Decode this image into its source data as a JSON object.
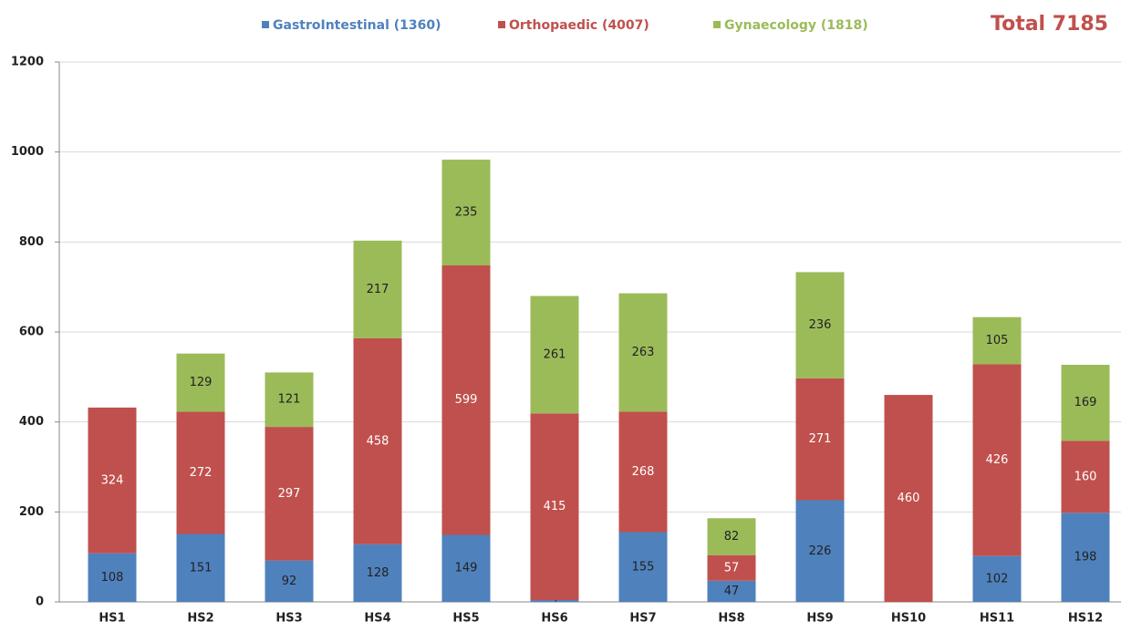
{
  "chart_data": {
    "type": "bar",
    "stacked": true,
    "annotation": "Total 7185",
    "categories": [
      "HS1",
      "HS2",
      "HS3",
      "HS4",
      "HS5",
      "HS6",
      "HS7",
      "HS8",
      "HS9",
      "HS10",
      "HS11",
      "HS12"
    ],
    "series": [
      {
        "name": "GastroIntestinal (1360)",
        "color": "#4f81bd",
        "values": [
          108,
          151,
          92,
          128,
          149,
          4,
          155,
          47,
          226,
          null,
          102,
          198
        ]
      },
      {
        "name": "Orthopaedic (4007)",
        "color": "#c0504d",
        "values": [
          324,
          272,
          297,
          458,
          599,
          415,
          268,
          57,
          271,
          460,
          426,
          160
        ]
      },
      {
        "name": "Gynaecology (1818)",
        "color": "#9bbb59",
        "values": [
          null,
          129,
          121,
          217,
          235,
          261,
          263,
          82,
          236,
          null,
          105,
          169
        ]
      }
    ],
    "ylim": [
      0,
      1200
    ],
    "yticks": [
      0,
      200,
      400,
      600,
      800,
      1000,
      1200
    ],
    "grid": true,
    "legend": "top"
  }
}
